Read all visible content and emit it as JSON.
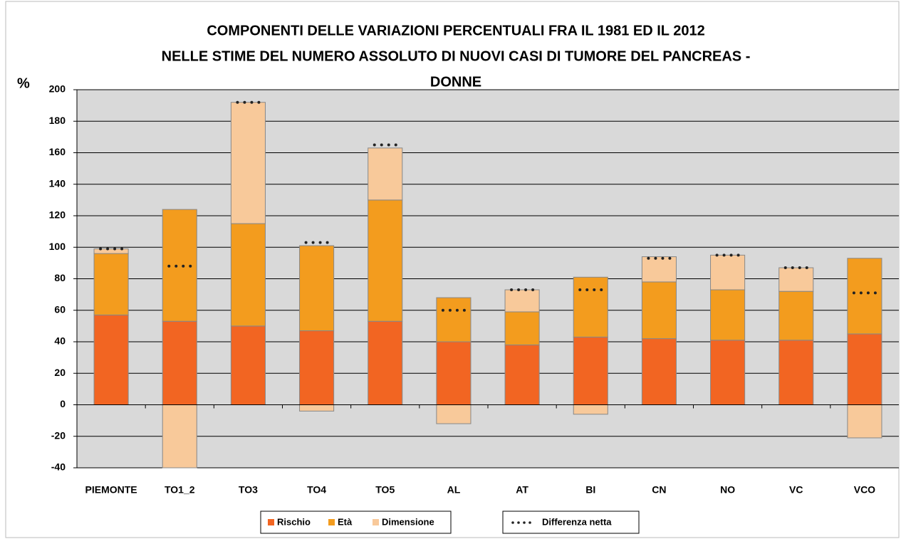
{
  "chart_data": {
    "type": "stacked_bar",
    "title": [
      "COMPONENTI DELLE VARIAZIONI PERCENTUALI FRA IL 1981 ED IL 2012",
      "NELLE STIME DEL NUMERO ASSOLUTO DI NUOVI CASI DI TUMORE DEL PANCREAS -",
      "DONNE"
    ],
    "y_label": "%",
    "categories": [
      "PIEMONTE",
      "TO1_2",
      "TO3",
      "TO4",
      "TO5",
      "AL",
      "AT",
      "BI",
      "CN",
      "NO",
      "VC",
      "VCO"
    ],
    "series": [
      {
        "name": "Rischio",
        "color": "#f26522",
        "values": [
          57,
          53,
          50,
          47,
          53,
          40,
          38,
          43,
          42,
          41,
          41,
          45
        ]
      },
      {
        "name": "Età",
        "color": "#f39c1e",
        "values": [
          39,
          71,
          65,
          54,
          77,
          28,
          21,
          38,
          36,
          32,
          31,
          48
        ]
      },
      {
        "name": "Dimensione",
        "color": "#f8c99a",
        "values": [
          3,
          -40,
          77,
          -4,
          33,
          -12,
          14,
          -6,
          16,
          22,
          15,
          -21
        ]
      }
    ],
    "net": {
      "name": "Differenza netta",
      "color": "#222222",
      "values": [
        99,
        88,
        192,
        103,
        165,
        60,
        73,
        73,
        93,
        95,
        87,
        71
      ]
    },
    "ylim": [
      -40,
      200
    ],
    "yticks": [
      -40,
      -20,
      0,
      20,
      40,
      60,
      80,
      100,
      120,
      140,
      160,
      180,
      200
    ],
    "grid": true
  }
}
